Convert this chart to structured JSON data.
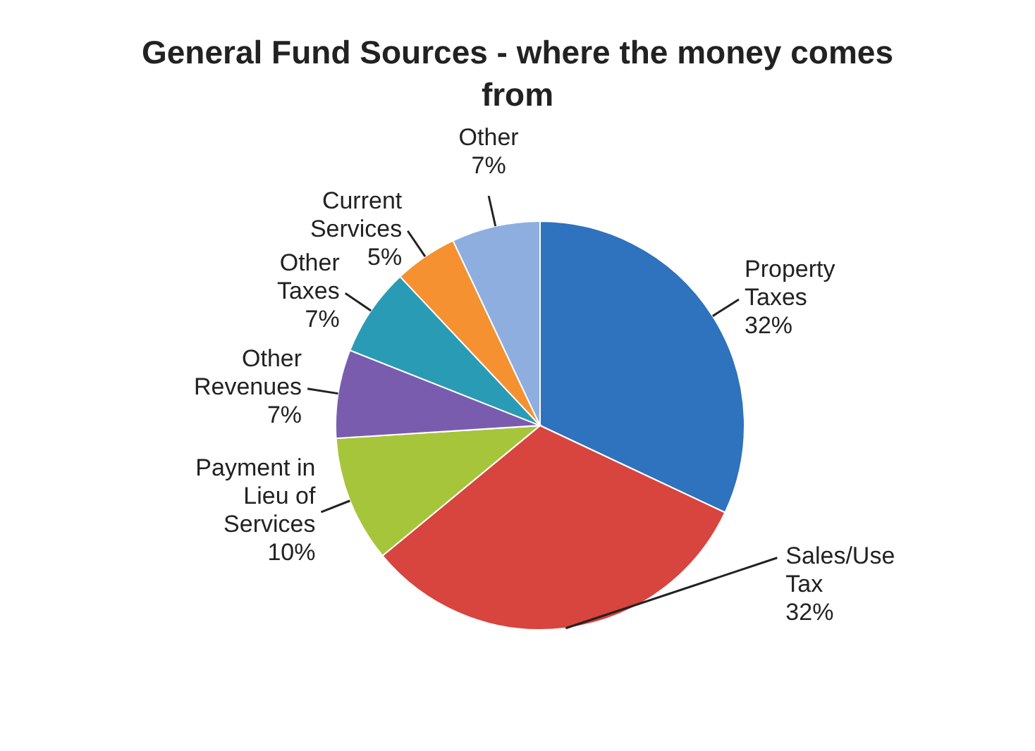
{
  "chart_data": {
    "type": "pie",
    "title": "General Fund Sources - where the money comes from",
    "categories": [
      "Property Taxes",
      "Sales/Use Tax",
      "Payment in Lieu of Services",
      "Other Revenues",
      "Other Taxes",
      "Current Services",
      "Other"
    ],
    "values": [
      32,
      32,
      10,
      7,
      7,
      5,
      7
    ],
    "value_labels": [
      "32%",
      "32%",
      "10%",
      "7%",
      "7%",
      "5%",
      "7%"
    ],
    "colors": [
      "#2f72bd",
      "#d8443e",
      "#a6c53a",
      "#7a5caf",
      "#2a9bb5",
      "#f59131",
      "#8eaee0"
    ],
    "legend": false
  }
}
